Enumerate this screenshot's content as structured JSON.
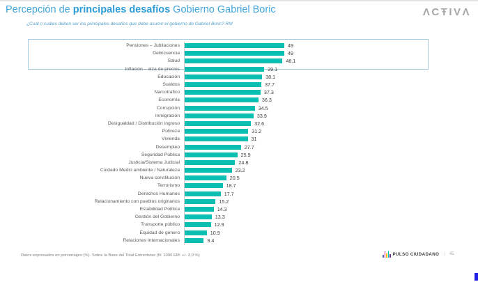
{
  "header": {
    "title_part1": "Percepción de ",
    "title_part2": "principales desafíos",
    "title_part3": " Gobierno Gabriel Boric",
    "subtitle": "¿Cuál o cuáles deben ser los principales desafíos que debe asumir el gobierno de Gabriel Boric? RM",
    "logo": "ΛCŦIVΛ"
  },
  "chart_data": {
    "type": "bar",
    "orientation": "horizontal",
    "title": "Percepción de principales desafíos Gobierno Gabriel Boric",
    "xlabel": "",
    "ylabel": "",
    "xlim": [
      0,
      49
    ],
    "grid": false,
    "legend": false,
    "bar_color": "#0abfb2",
    "highlighted_top_rows": 3,
    "categories": [
      "Pensiones – Jubilaciones",
      "Delincuencia",
      "Salud",
      "Inflación – alza de precios",
      "Educación",
      "Sueldos",
      "Narcotráfico",
      "Economía",
      "Corrupción",
      "Inmigración",
      "Desigualdad / Distribución ingreso",
      "Pobreza",
      "Vivienda",
      "Desempleo",
      "Seguridad Pública",
      "Justicia/Sistema Judicial",
      "Cuidado Medio ambiente / Naturaleza",
      "Nueva constitución",
      "Terrorismo",
      "Derechos Humanos",
      "Relacionamiento con pueblos originarios",
      "Estabilidad Política",
      "Gestión del Gobierno",
      "Transporte público",
      "Equidad de género",
      "Relaciones Internacionales"
    ],
    "values": [
      49,
      49,
      48.1,
      39.1,
      38.1,
      37.7,
      37.3,
      36.3,
      34.5,
      33.9,
      32.6,
      31.2,
      31,
      27.7,
      25.9,
      24.8,
      23.2,
      20.5,
      18.7,
      17.7,
      15.2,
      14.3,
      13.3,
      12.9,
      10.9,
      9.4
    ],
    "value_labels": [
      "49",
      "49",
      "48.1",
      "39.1",
      "38.1",
      "37.7",
      "37.3",
      "36.3",
      "34.5",
      "33.9",
      "32.6",
      "31.2",
      "31",
      "27.7",
      "25.9",
      "24.8",
      "23.2",
      "20.5",
      "18.7",
      "17.7",
      "15.2",
      "14.3",
      "13.3",
      "12.9",
      "10.9",
      "9.4"
    ]
  },
  "footer": {
    "note": "Datos expresados en porcentajes (%). Sobre la Base del Total Entrevistas (N: 1090  EM: +/- 3,0 %)",
    "brand": "PULSO CIUDADANO",
    "separator": "|",
    "page": "45"
  },
  "icons": {
    "pulso_equalizer_colors": [
      "#4472c4",
      "#e91e8c",
      "#ffc000",
      "#0abfb2",
      "#7030a0"
    ],
    "pulso_equalizer_heights": [
      4,
      9,
      6,
      10,
      5
    ]
  },
  "colors": {
    "bar_teal": "#0abfb2",
    "title_blue": "#44a5d9",
    "title_blue_bold": "#2e9cd6",
    "highlight_box_border": "#a3cce0",
    "label_grey": "#595959",
    "corner_mark_blue": "#2020e8"
  }
}
